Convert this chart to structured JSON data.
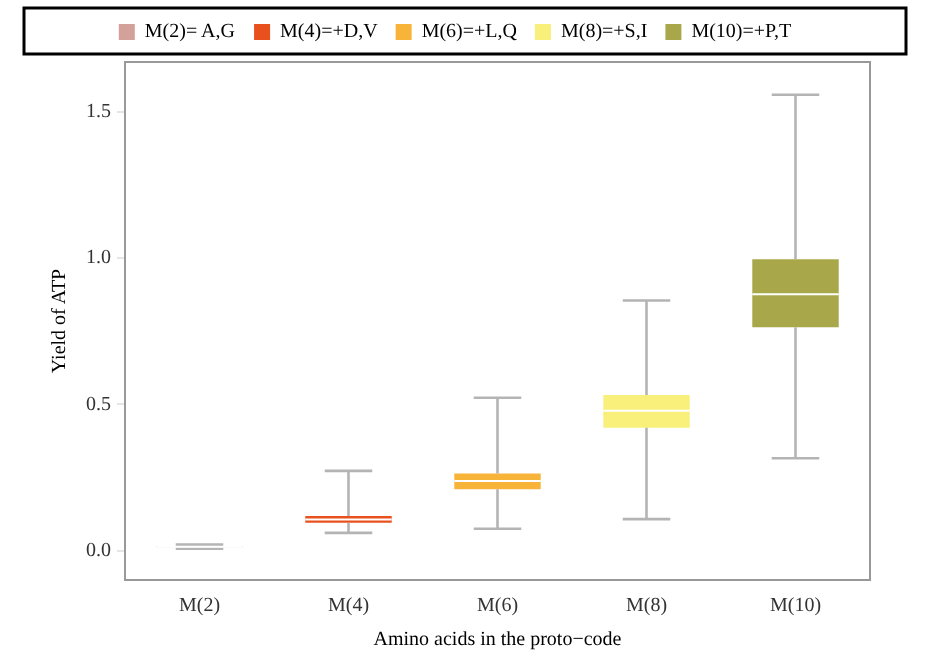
{
  "chart_data": {
    "type": "box",
    "xlabel": "Amino acids in the proto−code",
    "ylabel": "Yield of ATP",
    "categories": [
      "M(2)",
      "M(4)",
      "M(6)",
      "M(8)",
      "M(10)"
    ],
    "series": [
      {
        "name": "M(2)= A,G",
        "color": "#d4a09a",
        "boxes": [
          {
            "low": 0.007,
            "q1": 0.012,
            "median": 0.014,
            "q3": 0.016,
            "high": 0.021
          },
          null,
          null,
          null,
          null
        ]
      },
      {
        "name": "M(4)=+D,V",
        "color": "#e8501e",
        "boxes": [
          null,
          {
            "low": 0.061,
            "q1": 0.096,
            "median": 0.107,
            "q3": 0.119,
            "high": 0.273
          },
          null,
          null,
          null
        ]
      },
      {
        "name": "M(6)=+L,Q",
        "color": "#f8b438",
        "boxes": [
          null,
          null,
          {
            "low": 0.075,
            "q1": 0.21,
            "median": 0.238,
            "q3": 0.264,
            "high": 0.523
          },
          null,
          null
        ]
      },
      {
        "name": "M(8)=+S,I",
        "color": "#f8f07a",
        "boxes": [
          null,
          null,
          null,
          {
            "low": 0.108,
            "q1": 0.42,
            "median": 0.478,
            "q3": 0.532,
            "high": 0.855
          },
          null
        ]
      },
      {
        "name": "M(10)=+P,T",
        "color": "#a8a84a",
        "boxes": [
          null,
          null,
          null,
          null,
          {
            "low": 0.316,
            "q1": 0.764,
            "median": 0.876,
            "q3": 0.996,
            "high": 1.558
          }
        ]
      }
    ],
    "ylim": [
      -0.1,
      1.67
    ],
    "yticks": [
      {
        "value": 0,
        "label": "0.0"
      },
      {
        "value": 0.5,
        "label": "0.5"
      },
      {
        "value": 1,
        "label": "1.0"
      },
      {
        "value": 1.5,
        "label": "1.5"
      }
    ],
    "grid": false,
    "legend": "top"
  }
}
